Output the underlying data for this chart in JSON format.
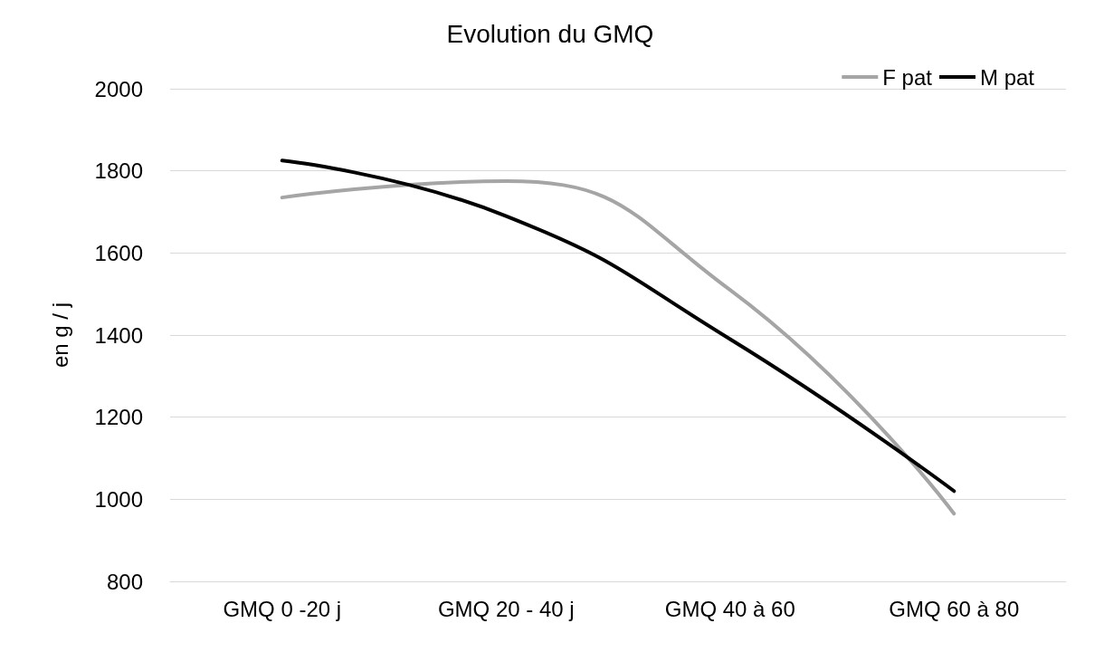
{
  "chart_data": {
    "type": "line",
    "title": "Evolution du GMQ",
    "ylabel": "en g / j",
    "categories": [
      "GMQ 0 -20 j",
      "GMQ 20 - 40 j",
      "GMQ 40 à 60",
      "GMQ 60 à 80"
    ],
    "series": [
      {
        "name": "F pat",
        "color": "#a5a5a5",
        "values": [
          1735,
          1775,
          1510,
          965
        ]
      },
      {
        "name": "M pat",
        "color": "#000000",
        "values": [
          1825,
          1690,
          1390,
          1020
        ]
      }
    ],
    "ylim": [
      800,
      2000
    ],
    "yticks": [
      800,
      1000,
      1200,
      1400,
      1600,
      1800,
      2000
    ],
    "grid": "y",
    "legend": "top right",
    "marker": "none",
    "line_style": "solid"
  }
}
